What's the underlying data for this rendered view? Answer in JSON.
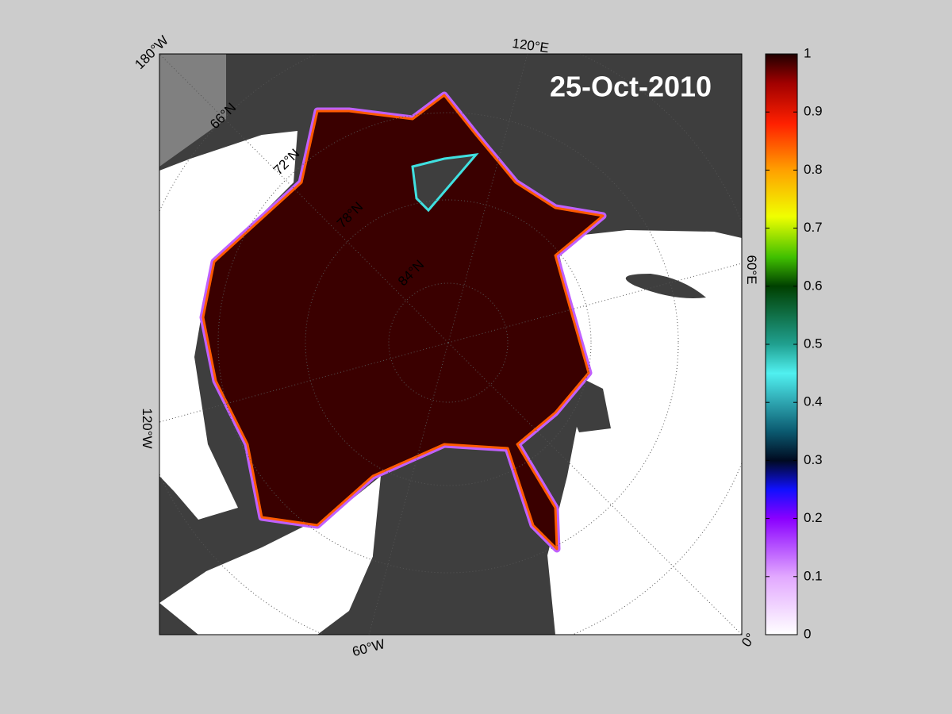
{
  "map": {
    "date": "25-Oct-2010",
    "meridian_labels": [
      "180°W",
      "120°E",
      "60°E",
      "0°",
      "60°W",
      "120°W"
    ],
    "parallel_labels": [
      "66°N",
      "72°N",
      "78°N",
      "84°N"
    ],
    "colorbar": {
      "lim": [
        0,
        1
      ],
      "ticks": [
        0,
        0.1,
        0.2,
        0.3,
        0.4,
        0.5,
        0.6,
        0.7,
        0.8,
        0.9,
        1
      ]
    }
  }
}
